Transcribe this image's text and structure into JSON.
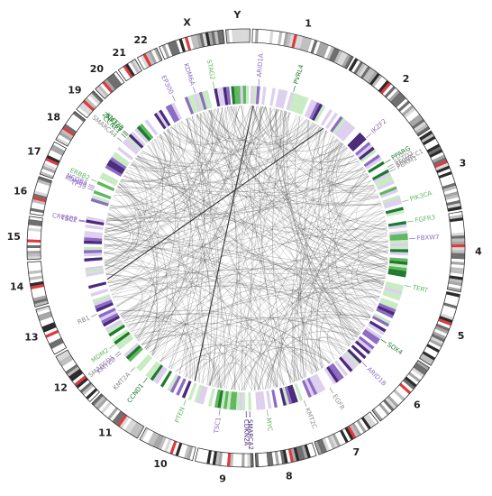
{
  "colors": {
    "green_dark": "#1f7a2e",
    "green_mid": "#5fb760",
    "green_light": "#c9ebc4",
    "purple_dark": "#4a2a7a",
    "purple_mid": "#8d6bc4",
    "purple_light": "#ddd0ee",
    "gray_label": "#8a8a8a",
    "link": "#555555",
    "centromere": "#e0393e"
  },
  "chromosomes": [
    {
      "name": "1",
      "size": 248
    },
    {
      "name": "2",
      "size": 242
    },
    {
      "name": "3",
      "size": 198
    },
    {
      "name": "4",
      "size": 190
    },
    {
      "name": "5",
      "size": 181
    },
    {
      "name": "6",
      "size": 171
    },
    {
      "name": "7",
      "size": 159
    },
    {
      "name": "8",
      "size": 145
    },
    {
      "name": "9",
      "size": 138
    },
    {
      "name": "10",
      "size": 134
    },
    {
      "name": "11",
      "size": 135
    },
    {
      "name": "12",
      "size": 133
    },
    {
      "name": "13",
      "size": 114
    },
    {
      "name": "14",
      "size": 107
    },
    {
      "name": "15",
      "size": 102
    },
    {
      "name": "16",
      "size": 90
    },
    {
      "name": "17",
      "size": 83
    },
    {
      "name": "18",
      "size": 80
    },
    {
      "name": "19",
      "size": 59
    },
    {
      "name": "20",
      "size": 64
    },
    {
      "name": "21",
      "size": 47
    },
    {
      "name": "22",
      "size": 51
    },
    {
      "name": "X",
      "size": 156
    },
    {
      "name": "Y",
      "size": 57
    }
  ],
  "genes": [
    {
      "name": "PVRL4",
      "chr": "1",
      "pos": 0.55,
      "color": "green_dark"
    },
    {
      "name": "IKZF2",
      "chr": "2",
      "pos": 0.65,
      "color": "purple_mid"
    },
    {
      "name": "PPARG",
      "chr": "3",
      "pos": 0.04,
      "color": "green_dark"
    },
    {
      "name": "SETD2",
      "chr": "3",
      "pos": 0.12,
      "color": "gray_label"
    },
    {
      "name": "SMARCC1",
      "chr": "3",
      "pos": 0.16,
      "color": "gray_label"
    },
    {
      "name": "PBRM1",
      "chr": "3",
      "pos": 0.2,
      "color": "gray_label"
    },
    {
      "name": "PIK3CA",
      "chr": "3",
      "pos": 0.72,
      "color": "green_mid"
    },
    {
      "name": "FGFR3",
      "chr": "4",
      "pos": 0.02,
      "color": "green_mid"
    },
    {
      "name": "FBXW7",
      "chr": "4",
      "pos": 0.3,
      "color": "purple_mid"
    },
    {
      "name": "TERT",
      "chr": "5",
      "pos": 0.05,
      "color": "green_mid"
    },
    {
      "name": "SOX4",
      "chr": "6",
      "pos": 0.05,
      "color": "green_dark"
    },
    {
      "name": "ARID1B",
      "chr": "6",
      "pos": 0.6,
      "color": "purple_mid"
    },
    {
      "name": "EGFR",
      "chr": "7",
      "pos": 0.35,
      "color": "gray_label"
    },
    {
      "name": "KMT2C",
      "chr": "7",
      "pos": 0.92,
      "color": "gray_label"
    },
    {
      "name": "MYC",
      "chr": "8",
      "pos": 0.7,
      "color": "green_mid"
    },
    {
      "name": "SMARCA2",
      "chr": "9",
      "pos": 0.04,
      "color": "purple_dark"
    },
    {
      "name": "CDKN2A",
      "chr": "9",
      "pos": 0.12,
      "color": "purple_dark"
    },
    {
      "name": "TSC1",
      "chr": "9",
      "pos": 0.72,
      "color": "purple_mid"
    },
    {
      "name": "PTEN",
      "chr": "10",
      "pos": 0.5,
      "color": "green_mid"
    },
    {
      "name": "CCND1",
      "chr": "11",
      "pos": 0.5,
      "color": "green_dark"
    },
    {
      "name": "KMT2A",
      "chr": "11",
      "pos": 0.88,
      "color": "gray_label"
    },
    {
      "name": "KDM6A",
      "chr": "X",
      "pos": 0.3,
      "color": "purple_mid"
    },
    {
      "name": "STAG2",
      "chr": "X",
      "pos": 0.7,
      "color": "green_mid"
    },
    {
      "name": "ARID1A",
      "chr": "1",
      "pos": 0.1,
      "color": "purple_mid"
    },
    {
      "name": "EP300",
      "chr": "22",
      "pos": 0.7,
      "color": "purple_mid"
    },
    {
      "name": "MDM2",
      "chr": "12",
      "pos": 0.55,
      "color": "green_mid"
    },
    {
      "name": "SMARCD1",
      "chr": "12",
      "pos": 0.35,
      "color": "gray_label"
    },
    {
      "name": "KMT2D",
      "chr": "12",
      "pos": 0.3,
      "color": "purple_mid"
    },
    {
      "name": "RB1",
      "chr": "13",
      "pos": 0.4,
      "color": "gray_label"
    },
    {
      "name": "CREBBP",
      "chr": "16",
      "pos": 0.05,
      "color": "purple_mid"
    },
    {
      "name": "TSC2",
      "chr": "16",
      "pos": 0.02,
      "color": "purple_mid"
    },
    {
      "name": "TP53",
      "chr": "17",
      "pos": 0.1,
      "color": "purple_mid"
    },
    {
      "name": "KDM6B",
      "chr": "17",
      "pos": 0.18,
      "color": "purple_mid"
    },
    {
      "name": "NCOR1",
      "chr": "17",
      "pos": 0.25,
      "color": "purple_mid"
    },
    {
      "name": "ERBB2",
      "chr": "17",
      "pos": 0.45,
      "color": "green_mid"
    },
    {
      "name": "SMARCA4",
      "chr": "19",
      "pos": 0.2,
      "color": "gray_label"
    },
    {
      "name": "CCNE1",
      "chr": "19",
      "pos": 0.5,
      "color": "green_dark"
    },
    {
      "name": "ZNF703",
      "chr": "19",
      "pos": 0.62,
      "color": "green_dark"
    },
    {
      "name": "KMT2B",
      "chr": "19",
      "pos": 0.7,
      "color": "green_dark"
    }
  ]
}
